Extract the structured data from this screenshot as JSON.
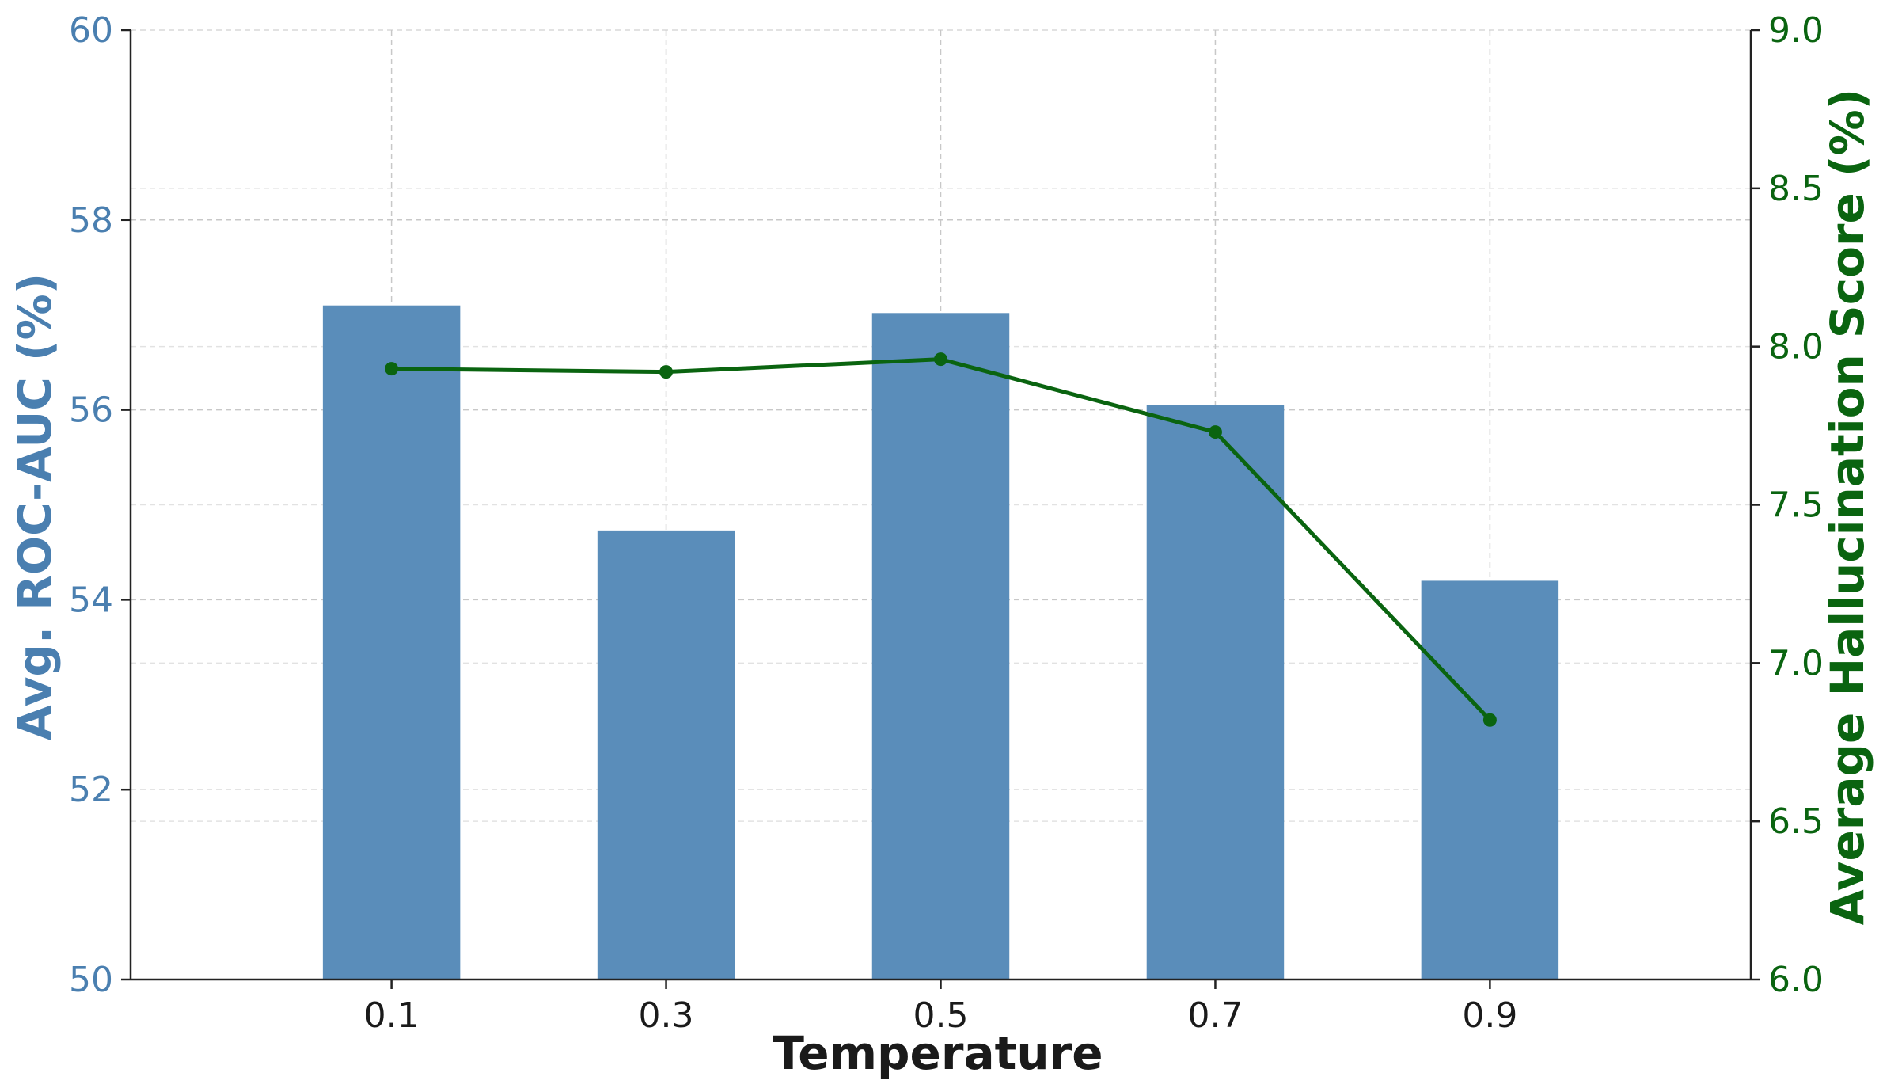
{
  "chart_data": {
    "type": "bar+line",
    "x_label": "Temperature",
    "categories": [
      "0.1",
      "0.3",
      "0.5",
      "0.7",
      "0.9"
    ],
    "bar_series": {
      "axis_label": "Avg. ROC-AUC (%)",
      "values": [
        57.1,
        54.73,
        57.02,
        56.05,
        54.2
      ],
      "color": "#5a8dba"
    },
    "line_series": {
      "axis_label": "Average Hallucination Score (%)",
      "values": [
        7.93,
        7.92,
        7.96,
        7.73,
        6.82
      ],
      "color": "#0a6410"
    },
    "left_axis": {
      "range": [
        50,
        60
      ],
      "ticks": [
        "50",
        "52",
        "54",
        "56",
        "58",
        "60"
      ],
      "color": "#4a7fb0"
    },
    "right_axis": {
      "range": [
        6.0,
        9.0
      ],
      "ticks": [
        "6.0",
        "6.5",
        "7.0",
        "7.5",
        "8.0",
        "8.5",
        "9.0"
      ],
      "color": "#0a6410"
    },
    "grid": true
  }
}
